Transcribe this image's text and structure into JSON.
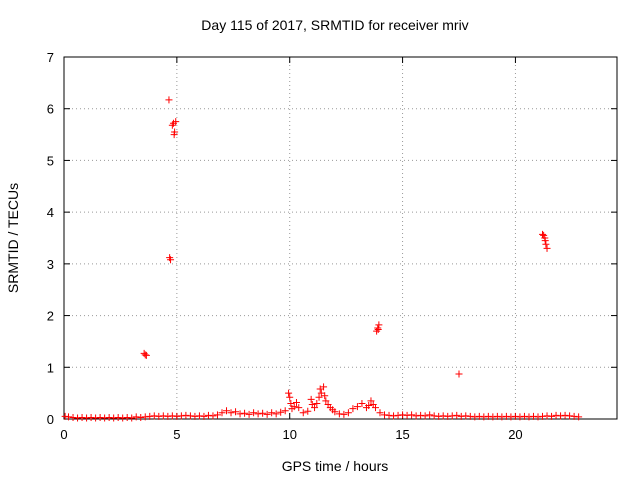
{
  "chart_data": {
    "type": "scatter",
    "title": "Day 115 of 2017, SRMTID for receiver mriv",
    "xlabel": "GPS time / hours",
    "ylabel": "SRMTID / TECUs",
    "xlim": [
      0,
      24.5
    ],
    "ylim": [
      0,
      7
    ],
    "xticks": [
      0,
      5,
      10,
      15,
      20
    ],
    "yticks": [
      0,
      1,
      2,
      3,
      4,
      5,
      6,
      7
    ],
    "grid": true,
    "marker": "+",
    "color": "#ff0000",
    "series": [
      {
        "name": "SRMTID",
        "points": [
          [
            0.05,
            0.05
          ],
          [
            0.2,
            0.04
          ],
          [
            0.4,
            0.03
          ],
          [
            0.6,
            0.02
          ],
          [
            0.8,
            0.03
          ],
          [
            1.0,
            0.02
          ],
          [
            1.2,
            0.03
          ],
          [
            1.4,
            0.02
          ],
          [
            1.6,
            0.03
          ],
          [
            1.8,
            0.02
          ],
          [
            2.0,
            0.03
          ],
          [
            2.2,
            0.02
          ],
          [
            2.4,
            0.03
          ],
          [
            2.6,
            0.02
          ],
          [
            2.8,
            0.03
          ],
          [
            3.0,
            0.02
          ],
          [
            3.2,
            0.04
          ],
          [
            3.4,
            0.03
          ],
          [
            3.6,
            0.04
          ],
          [
            3.8,
            0.05
          ],
          [
            4.0,
            0.06
          ],
          [
            4.2,
            0.05
          ],
          [
            4.4,
            0.06
          ],
          [
            4.6,
            0.05
          ],
          [
            4.8,
            0.06
          ],
          [
            5.0,
            0.05
          ],
          [
            5.2,
            0.06
          ],
          [
            5.4,
            0.07
          ],
          [
            5.6,
            0.06
          ],
          [
            5.8,
            0.05
          ],
          [
            6.0,
            0.06
          ],
          [
            6.2,
            0.05
          ],
          [
            6.4,
            0.07
          ],
          [
            6.6,
            0.06
          ],
          [
            6.8,
            0.08
          ],
          [
            7.0,
            0.12
          ],
          [
            7.2,
            0.16
          ],
          [
            7.4,
            0.12
          ],
          [
            7.6,
            0.14
          ],
          [
            7.8,
            0.1
          ],
          [
            8.0,
            0.11
          ],
          [
            8.2,
            0.09
          ],
          [
            8.4,
            0.12
          ],
          [
            8.6,
            0.1
          ],
          [
            8.8,
            0.11
          ],
          [
            9.0,
            0.09
          ],
          [
            9.2,
            0.12
          ],
          [
            9.4,
            0.1
          ],
          [
            9.6,
            0.13
          ],
          [
            9.8,
            0.16
          ],
          [
            9.95,
            0.5
          ],
          [
            10.0,
            0.42
          ],
          [
            10.05,
            0.3
          ],
          [
            10.1,
            0.2
          ],
          [
            10.2,
            0.24
          ],
          [
            10.3,
            0.32
          ],
          [
            10.4,
            0.22
          ],
          [
            10.6,
            0.12
          ],
          [
            10.8,
            0.15
          ],
          [
            10.95,
            0.38
          ],
          [
            11.0,
            0.28
          ],
          [
            11.1,
            0.22
          ],
          [
            11.2,
            0.3
          ],
          [
            11.3,
            0.42
          ],
          [
            11.35,
            0.58
          ],
          [
            11.4,
            0.5
          ],
          [
            11.5,
            0.62
          ],
          [
            11.55,
            0.45
          ],
          [
            11.6,
            0.35
          ],
          [
            11.7,
            0.28
          ],
          [
            11.8,
            0.22
          ],
          [
            11.9,
            0.18
          ],
          [
            12.0,
            0.14
          ],
          [
            12.2,
            0.1
          ],
          [
            12.4,
            0.09
          ],
          [
            12.6,
            0.12
          ],
          [
            12.8,
            0.2
          ],
          [
            13.0,
            0.24
          ],
          [
            13.2,
            0.3
          ],
          [
            13.4,
            0.22
          ],
          [
            13.5,
            0.26
          ],
          [
            13.6,
            0.35
          ],
          [
            13.7,
            0.28
          ],
          [
            13.8,
            0.22
          ],
          [
            14.0,
            0.12
          ],
          [
            14.2,
            0.08
          ],
          [
            14.4,
            0.07
          ],
          [
            14.6,
            0.06
          ],
          [
            14.8,
            0.07
          ],
          [
            15.0,
            0.08
          ],
          [
            15.2,
            0.07
          ],
          [
            15.4,
            0.08
          ],
          [
            15.6,
            0.06
          ],
          [
            15.8,
            0.07
          ],
          [
            16.0,
            0.06
          ],
          [
            16.2,
            0.08
          ],
          [
            16.4,
            0.06
          ],
          [
            16.6,
            0.05
          ],
          [
            16.8,
            0.06
          ],
          [
            17.0,
            0.05
          ],
          [
            17.2,
            0.06
          ],
          [
            17.4,
            0.07
          ],
          [
            17.6,
            0.05
          ],
          [
            17.8,
            0.06
          ],
          [
            18.0,
            0.05
          ],
          [
            18.2,
            0.04
          ],
          [
            18.4,
            0.05
          ],
          [
            18.6,
            0.04
          ],
          [
            18.8,
            0.05
          ],
          [
            19.0,
            0.04
          ],
          [
            19.2,
            0.05
          ],
          [
            19.4,
            0.04
          ],
          [
            19.6,
            0.05
          ],
          [
            19.8,
            0.04
          ],
          [
            20.0,
            0.05
          ],
          [
            20.2,
            0.04
          ],
          [
            20.4,
            0.05
          ],
          [
            20.6,
            0.04
          ],
          [
            20.8,
            0.05
          ],
          [
            21.0,
            0.04
          ],
          [
            21.2,
            0.05
          ],
          [
            21.4,
            0.06
          ],
          [
            21.6,
            0.05
          ],
          [
            21.8,
            0.07
          ],
          [
            22.0,
            0.06
          ],
          [
            22.2,
            0.07
          ],
          [
            22.4,
            0.06
          ],
          [
            22.6,
            0.05
          ],
          [
            22.8,
            0.04
          ],
          [
            3.55,
            1.27
          ],
          [
            3.6,
            1.24
          ],
          [
            3.65,
            1.23
          ],
          [
            4.65,
            6.17
          ],
          [
            4.68,
            3.12
          ],
          [
            4.72,
            3.08
          ],
          [
            4.8,
            5.68
          ],
          [
            4.85,
            5.72
          ],
          [
            4.9,
            5.55
          ],
          [
            4.95,
            5.75
          ],
          [
            4.88,
            5.5
          ],
          [
            13.85,
            1.7
          ],
          [
            13.9,
            1.76
          ],
          [
            13.95,
            1.82
          ],
          [
            13.92,
            1.73
          ],
          [
            17.5,
            0.87
          ],
          [
            21.2,
            3.57
          ],
          [
            21.25,
            3.55
          ],
          [
            21.3,
            3.5
          ],
          [
            21.35,
            3.38
          ],
          [
            21.4,
            3.3
          ],
          [
            21.32,
            3.45
          ]
        ]
      }
    ]
  }
}
